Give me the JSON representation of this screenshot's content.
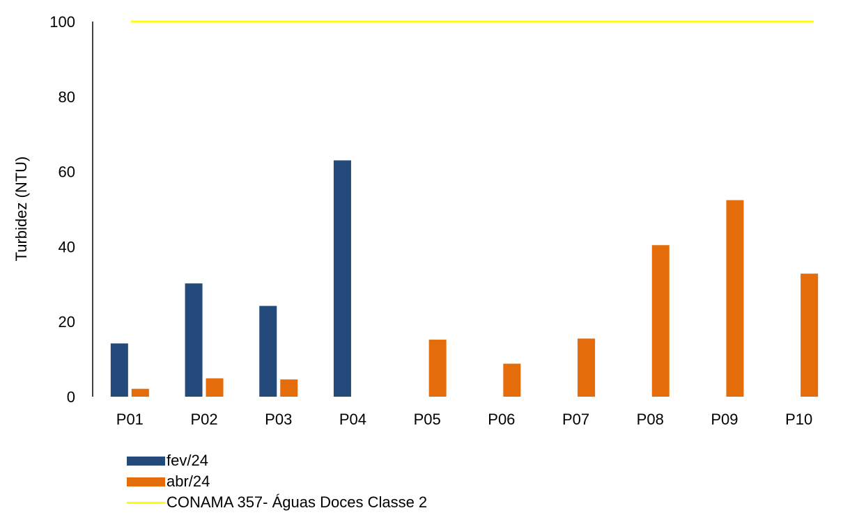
{
  "colors": {
    "fev": "#244a7c",
    "abr": "#e46c0a",
    "limit": "#ffff00"
  },
  "chart_data": {
    "type": "bar",
    "categories": [
      "P01",
      "P02",
      "P03",
      "P04",
      "P05",
      "P06",
      "P07",
      "P08",
      "P09",
      "P10"
    ],
    "series": [
      {
        "name": "fev/24",
        "values": [
          14.2,
          30.2,
          24.2,
          63.0,
          null,
          null,
          null,
          null,
          null,
          null
        ]
      },
      {
        "name": "abr/24",
        "values": [
          2.1,
          4.9,
          4.6,
          null,
          15.2,
          8.8,
          15.5,
          40.4,
          52.4,
          32.8
        ]
      }
    ],
    "reference_line": {
      "name": "CONAMA 357- Águas Doces Classe 2",
      "value": 100
    },
    "title": "",
    "xlabel": "",
    "ylabel": "Turbidez (NTU)",
    "ylim": [
      0,
      100
    ],
    "yticks": [
      0,
      20,
      40,
      60,
      80,
      100
    ],
    "grid": false,
    "legend_position": "bottom-left"
  }
}
